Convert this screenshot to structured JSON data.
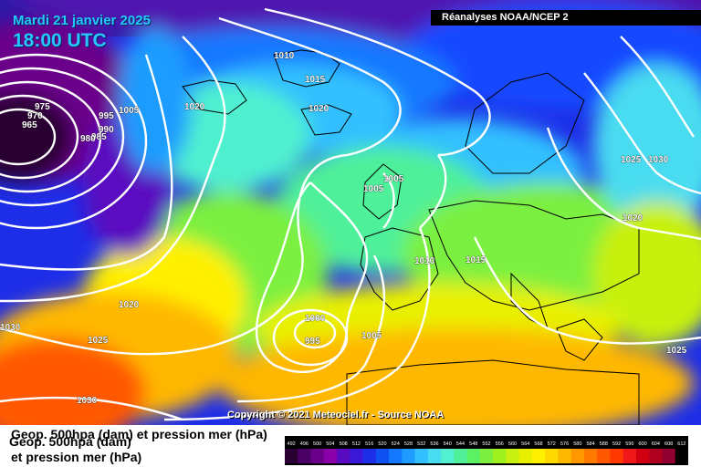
{
  "header": {
    "date": "Mardi 21 janvier 2025",
    "time": "18:00 UTC",
    "source": "Réanalyses NOAA/NCEP 2"
  },
  "footer": {
    "copyright": "Copyright © 2021 Meteociel.fr - Source NOAA",
    "field_label_line1": "Geop. 500hpa (dam) et pression mer (hPa)",
    "field_label_ghost": "Geop. 500hpa (dam)",
    "field_label_line2": "et pression mer (hPa)"
  },
  "isobar_labels": [
    "975",
    "970",
    "965",
    "990",
    "995",
    "985",
    "980",
    "1005",
    "1010",
    "1015",
    "1020",
    "1020",
    "1020",
    "1005",
    "1005",
    "1010",
    "1015",
    "1025",
    "1030",
    "1020",
    "1000",
    "995",
    "1005",
    "1025",
    "1030",
    "1030",
    "1025"
  ],
  "colorbar": {
    "ticks": [
      "492",
      "496",
      "500",
      "504",
      "508",
      "512",
      "516",
      "520",
      "524",
      "528",
      "532",
      "536",
      "540",
      "544",
      "548",
      "552",
      "556",
      "560",
      "564",
      "568",
      "572",
      "576",
      "580",
      "584",
      "588",
      "592",
      "596",
      "600",
      "604",
      "608",
      "612"
    ],
    "colors": [
      "#2a0033",
      "#4b0066",
      "#6a008a",
      "#8a00a8",
      "#5a0bc0",
      "#3a18d8",
      "#1e2ee8",
      "#0f50f0",
      "#1478ff",
      "#1e9cff",
      "#32c0ff",
      "#48dcf0",
      "#50f0d0",
      "#50f09a",
      "#5cf064",
      "#7cf040",
      "#a0f020",
      "#c8f010",
      "#e8f000",
      "#fff000",
      "#ffd800",
      "#ffb800",
      "#ff9800",
      "#ff7800",
      "#ff5800",
      "#ff3800",
      "#f01818",
      "#d00010",
      "#b00020",
      "#900030",
      "#000000"
    ]
  },
  "colors": {
    "title_blue": "#27c6ff",
    "isobar": "#ffffff"
  }
}
